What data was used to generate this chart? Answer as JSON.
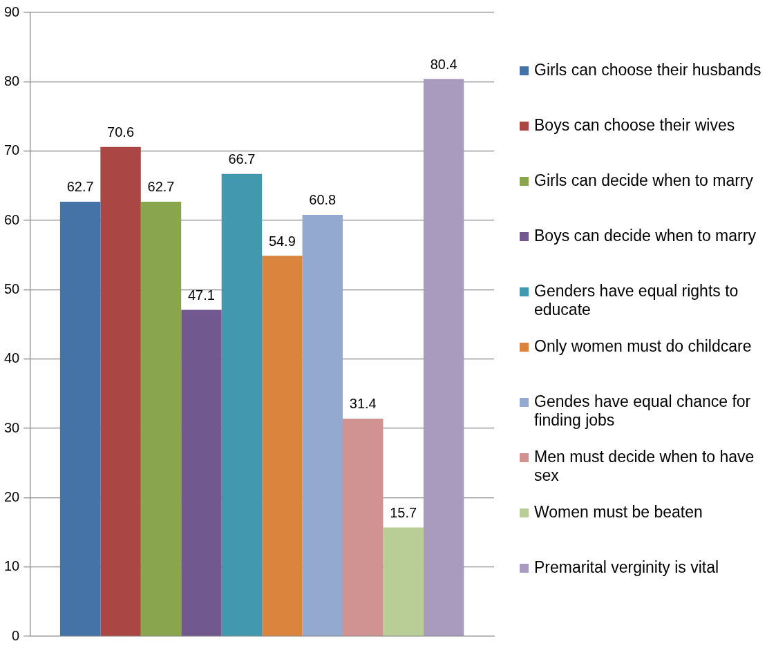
{
  "chart_data": {
    "type": "bar",
    "categories": [
      null
    ],
    "series": [
      {
        "name": "Girls can choose their husbands",
        "color": "#4572a7",
        "values": [
          62.7
        ]
      },
      {
        "name": "Boys can choose their wives",
        "color": "#aa4643",
        "values": [
          70.6
        ]
      },
      {
        "name": "Girls can decide when to marry",
        "color": "#89a54e",
        "values": [
          62.7
        ]
      },
      {
        "name": "Boys can decide when to marry",
        "color": "#71588f",
        "values": [
          47.1
        ]
      },
      {
        "name": "Genders have equal rights to educate",
        "color": "#4198af",
        "values": [
          66.7
        ]
      },
      {
        "name": "Only women must do childcare",
        "color": "#db843d",
        "values": [
          54.9
        ]
      },
      {
        "name": "Gendes have equal chance for finding jobs",
        "color": "#93a9cf",
        "values": [
          60.8
        ]
      },
      {
        "name": "Men must decide when to have sex",
        "color": "#d19392",
        "values": [
          31.4
        ]
      },
      {
        "name": "Women must be beaten",
        "color": "#b9cd96",
        "values": [
          15.7
        ]
      },
      {
        "name": "Premarital verginity is vital",
        "color": "#a99bbd",
        "values": [
          80.4
        ]
      }
    ],
    "ylim": [
      0,
      90
    ],
    "yticks": [
      0,
      10,
      20,
      30,
      40,
      50,
      60,
      70,
      80,
      90
    ],
    "grid": "y",
    "legend": "right",
    "data_labels": true
  }
}
